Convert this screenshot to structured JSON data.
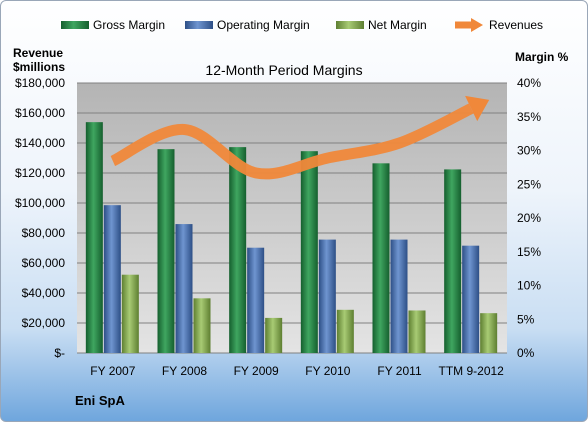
{
  "chart_data": {
    "type": "bar",
    "title": "12-Month Period Margins",
    "company": "Eni SpA",
    "ylabel_left": [
      "Revenue",
      "$millions"
    ],
    "ylabel_right": "Margin %",
    "categories": [
      "FY 2007",
      "FY 2008",
      "FY 2009",
      "FY 2010",
      "FY 2011",
      "TTM 9-2012"
    ],
    "left_axis": {
      "ylim": [
        0,
        180000
      ],
      "ticks": [
        "$-",
        "$20,000",
        "$40,000",
        "$60,000",
        "$80,000",
        "$100,000",
        "$120,000",
        "$140,000",
        "$160,000",
        "$180,000"
      ]
    },
    "right_axis": {
      "ylim": [
        0,
        40
      ],
      "ticks": [
        "0%",
        "5%",
        "10%",
        "15%",
        "20%",
        "25%",
        "30%",
        "35%",
        "40%"
      ]
    },
    "series": [
      {
        "name": "Gross Margin",
        "axis": "right",
        "unit": "%",
        "values": [
          34.2,
          30.2,
          30.5,
          29.9,
          28.1,
          27.2
        ],
        "color": "#2e8b4a"
      },
      {
        "name": "Operating Margin",
        "axis": "right",
        "unit": "%",
        "values": [
          21.9,
          19.1,
          15.6,
          16.8,
          16.8,
          15.9
        ],
        "color": "#4f77b8"
      },
      {
        "name": "Net Margin",
        "axis": "right",
        "unit": "%",
        "values": [
          11.6,
          8.1,
          5.2,
          6.4,
          6.3,
          5.9
        ],
        "color": "#8fb45a"
      },
      {
        "name": "Revenues",
        "axis": "left",
        "type": "line",
        "values": [
          128000,
          149000,
          120000,
          130000,
          140000,
          163000
        ],
        "color": "#f0883a"
      }
    ],
    "legend_position": "top",
    "grid": true
  }
}
